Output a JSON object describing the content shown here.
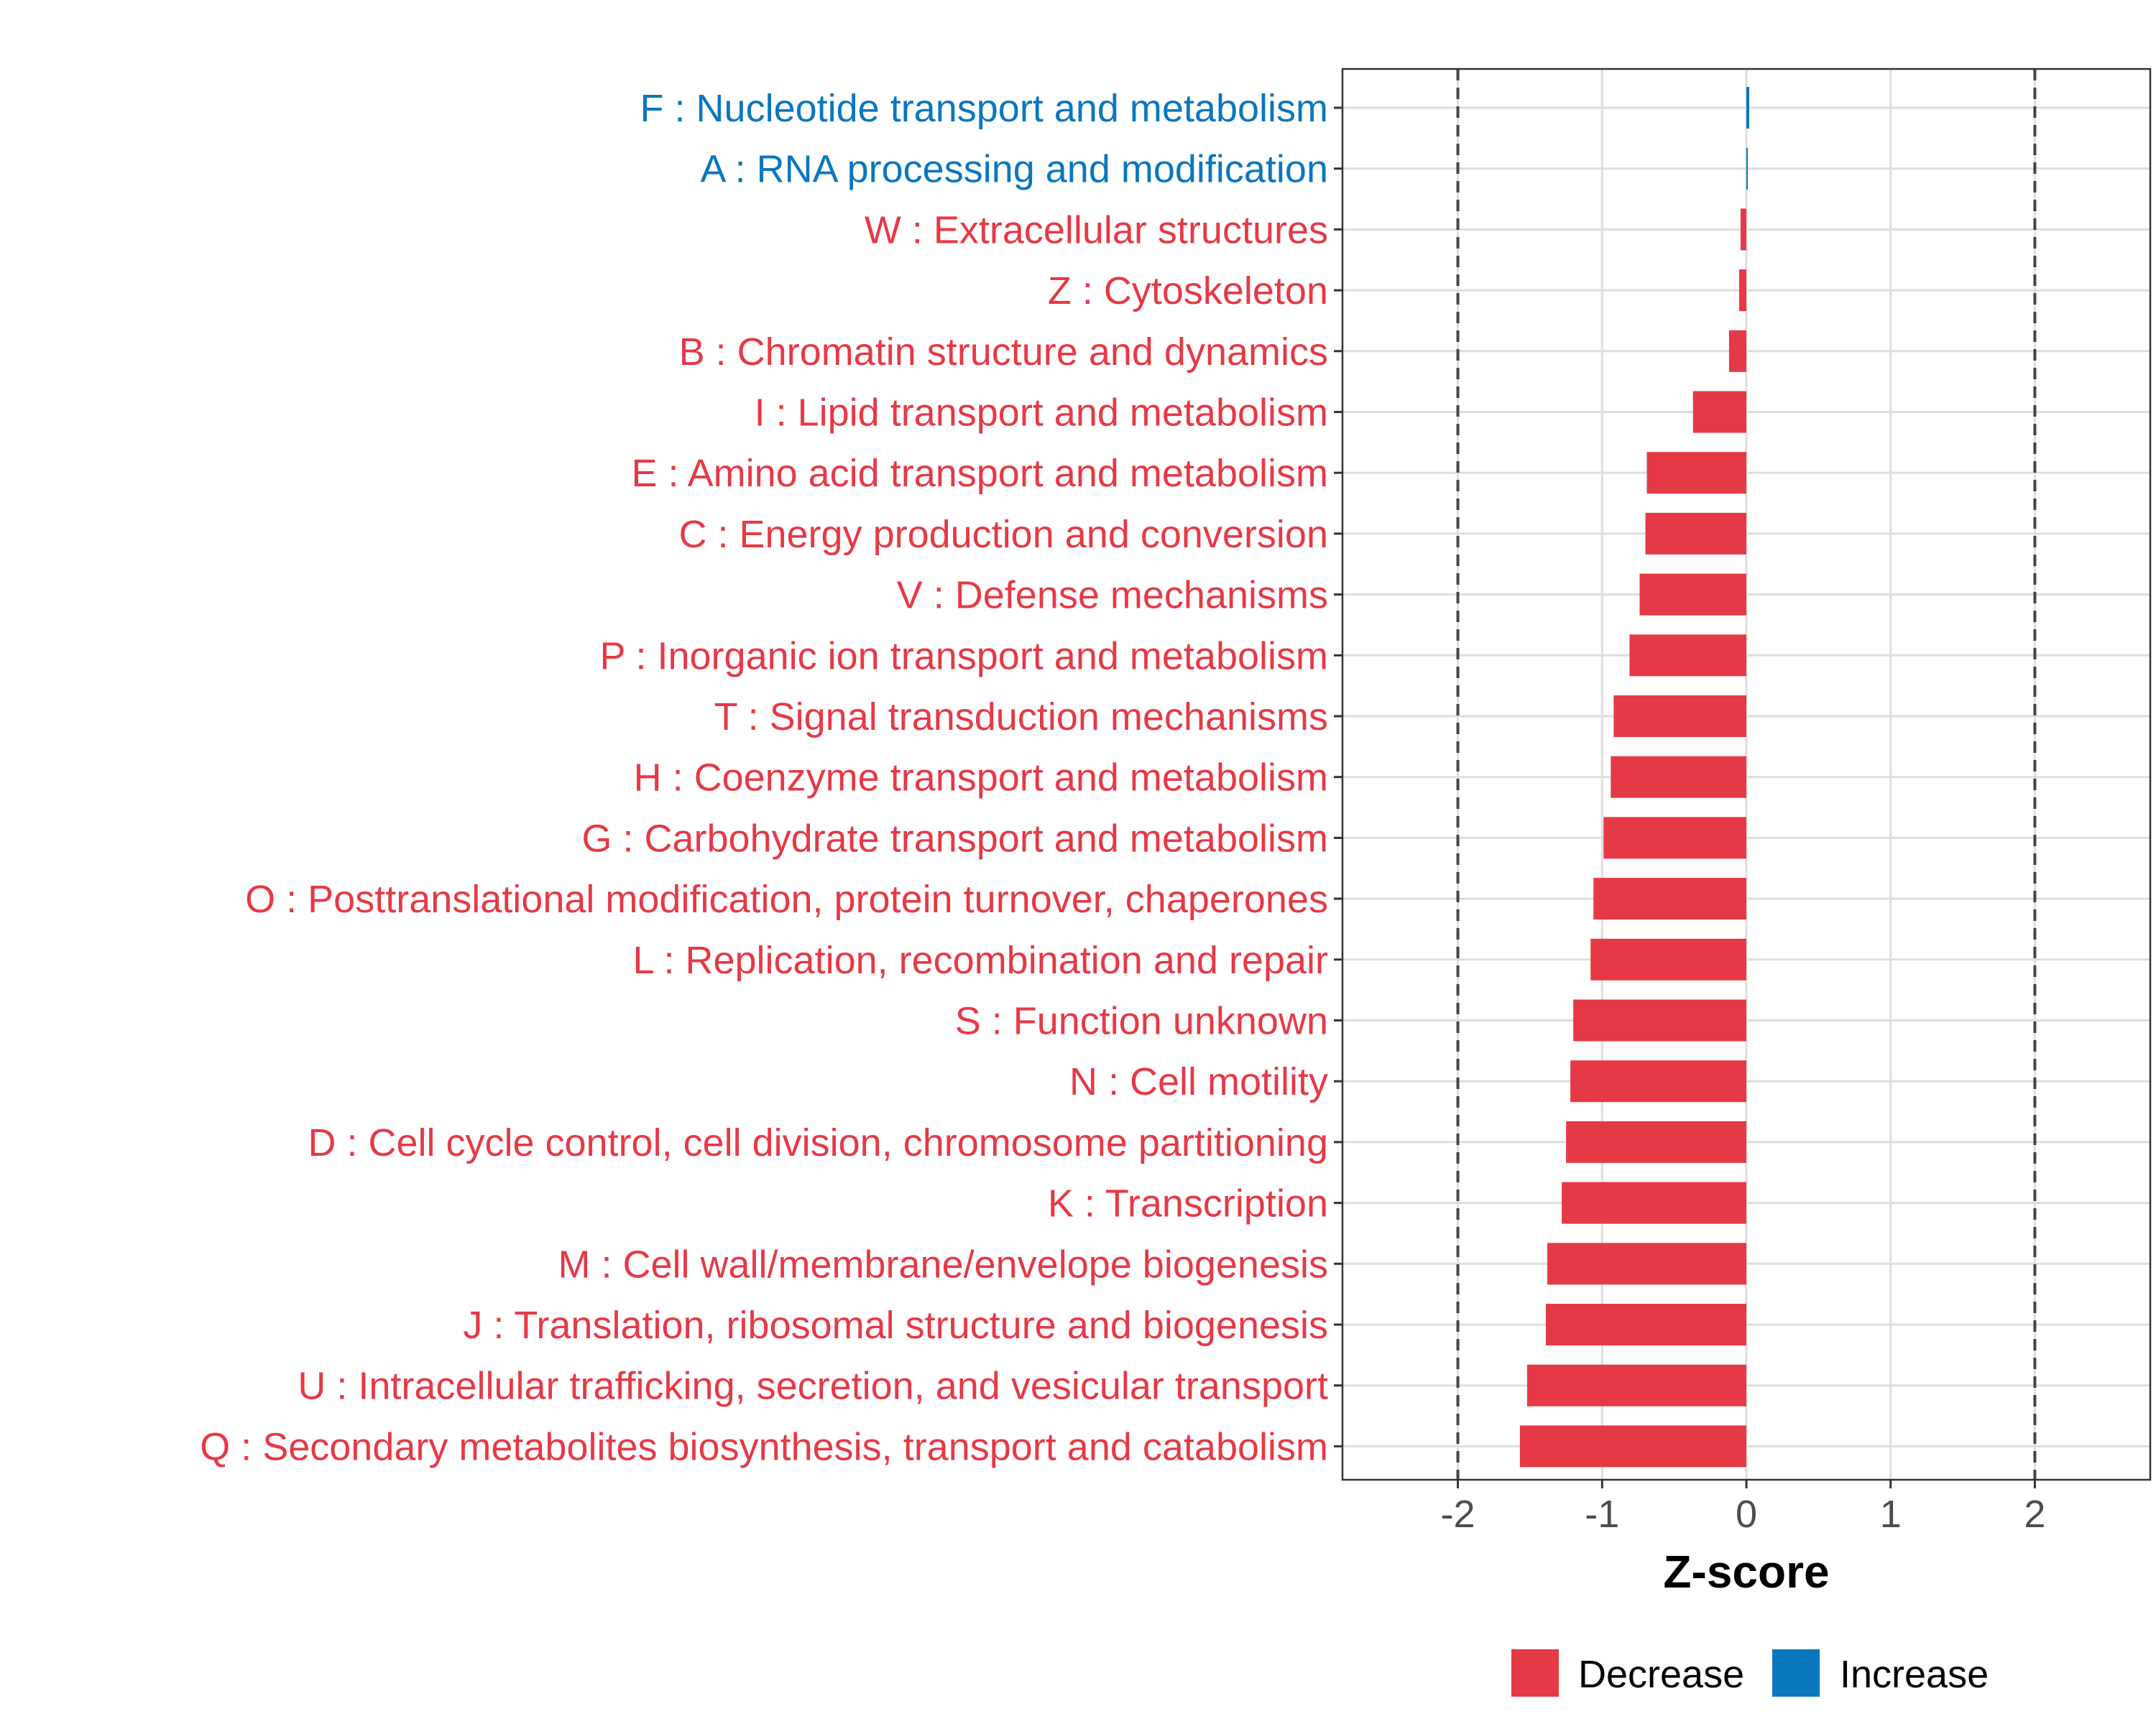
{
  "chart_data": {
    "type": "bar",
    "orientation": "horizontal",
    "xlabel": "Z-score",
    "xlim": [
      -2.8,
      2.8
    ],
    "xticks": [
      -2,
      -1,
      0,
      1,
      2
    ],
    "xtick_labels": [
      "-2",
      "-1",
      "0",
      "1",
      "2"
    ],
    "reference_lines": [
      -2,
      2
    ],
    "grid": true,
    "legend": {
      "placement": "bottom",
      "entries": [
        {
          "label": "Decrease",
          "color": "#E63946"
        },
        {
          "label": "Increase",
          "color": "#0A77BE"
        }
      ]
    },
    "categories": [
      {
        "label": "F : Nucleotide transport and metabolism",
        "value": 0.02,
        "direction": "Increase"
      },
      {
        "label": "A : RNA processing and modification",
        "value": 0.01,
        "direction": "Increase"
      },
      {
        "label": "W : Extracellular structures",
        "value": -0.04,
        "direction": "Decrease"
      },
      {
        "label": "Z : Cytoskeleton",
        "value": -0.05,
        "direction": "Decrease"
      },
      {
        "label": "B : Chromatin structure and dynamics",
        "value": -0.12,
        "direction": "Decrease"
      },
      {
        "label": "I : Lipid transport and metabolism",
        "value": -0.37,
        "direction": "Decrease"
      },
      {
        "label": "E : Amino acid transport and metabolism",
        "value": -0.69,
        "direction": "Decrease"
      },
      {
        "label": "C : Energy production and conversion",
        "value": -0.7,
        "direction": "Decrease"
      },
      {
        "label": "V : Defense mechanisms",
        "value": -0.74,
        "direction": "Decrease"
      },
      {
        "label": "P : Inorganic ion transport and metabolism",
        "value": -0.81,
        "direction": "Decrease"
      },
      {
        "label": "T : Signal transduction mechanisms",
        "value": -0.92,
        "direction": "Decrease"
      },
      {
        "label": "H : Coenzyme transport and metabolism",
        "value": -0.94,
        "direction": "Decrease"
      },
      {
        "label": "G : Carbohydrate transport and metabolism",
        "value": -0.99,
        "direction": "Decrease"
      },
      {
        "label": "O : Posttranslational modification, protein turnover, chaperones",
        "value": -1.06,
        "direction": "Decrease"
      },
      {
        "label": "L : Replication, recombination and repair",
        "value": -1.08,
        "direction": "Decrease"
      },
      {
        "label": "S : Function unknown",
        "value": -1.2,
        "direction": "Decrease"
      },
      {
        "label": "N : Cell motility",
        "value": -1.22,
        "direction": "Decrease"
      },
      {
        "label": "D : Cell cycle control, cell division, chromosome partitioning",
        "value": -1.25,
        "direction": "Decrease"
      },
      {
        "label": "K : Transcription",
        "value": -1.28,
        "direction": "Decrease"
      },
      {
        "label": "M : Cell wall/membrane/envelope biogenesis",
        "value": -1.38,
        "direction": "Decrease"
      },
      {
        "label": "J : Translation, ribosomal structure and biogenesis",
        "value": -1.39,
        "direction": "Decrease"
      },
      {
        "label": "U : Intracellular trafficking, secretion, and vesicular transport",
        "value": -1.52,
        "direction": "Decrease"
      },
      {
        "label": "Q : Secondary metabolites biosynthesis, transport and catabolism",
        "value": -1.57,
        "direction": "Decrease"
      }
    ]
  }
}
